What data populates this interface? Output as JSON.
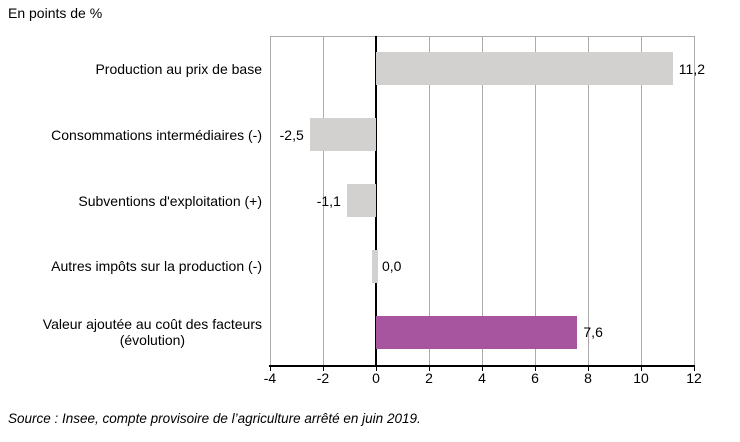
{
  "source_note": "Source : Insee, compte provisoire de l’agriculture arrêté en juin 2019.",
  "chart_data": {
    "type": "bar",
    "orientation": "horizontal",
    "title": "En points de %",
    "categories": [
      "Production au prix de base",
      "Consommations intermédiaires (-)",
      "Subventions d'exploitation (+)",
      "Autres impôts sur la production (-)",
      "Valeur ajoutée au coût des facteurs\n(évolution)"
    ],
    "values": [
      11.2,
      -2.5,
      -1.1,
      0.0,
      7.6
    ],
    "value_labels": [
      "11,2",
      "-2,5",
      "-1,1",
      "0,0",
      "7,6"
    ],
    "bar_colors": [
      "#d3d0d0",
      "#d3d0d0",
      "#d3d0d0",
      "#d3d0d0",
      "#a6559e"
    ],
    "xlim": [
      -4,
      12
    ],
    "x_ticks": [
      -4,
      -2,
      0,
      2,
      4,
      6,
      8,
      10,
      12
    ],
    "x_tick_labels": [
      "-4",
      "-2",
      "0",
      "2",
      "4",
      "6",
      "8",
      "10",
      "12"
    ],
    "grid": true,
    "gridline_color": "#acaaaa",
    "axis_color": "#000000",
    "legend": false,
    "xlabel": "",
    "ylabel": ""
  }
}
